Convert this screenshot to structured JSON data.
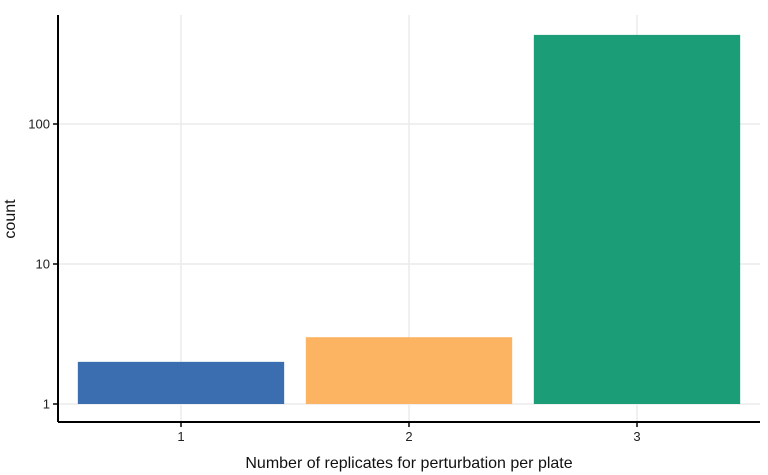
{
  "chart_data": {
    "type": "bar",
    "categories": [
      "1",
      "2",
      "3"
    ],
    "values": [
      2,
      3,
      433
    ],
    "colors": [
      "#3A6EB0",
      "#FDB462",
      "#1B9E77"
    ],
    "y_scale": "log10",
    "ylim": [
      1,
      550
    ],
    "y_ticks": [
      1,
      10,
      100
    ],
    "y_tick_labels": [
      "1",
      "10",
      "100"
    ],
    "x_tick_labels": [
      "1",
      "2",
      "3"
    ],
    "xlabel": "Number of replicates for perturbation per plate",
    "ylabel": "count",
    "grid": true,
    "legend": "none"
  }
}
